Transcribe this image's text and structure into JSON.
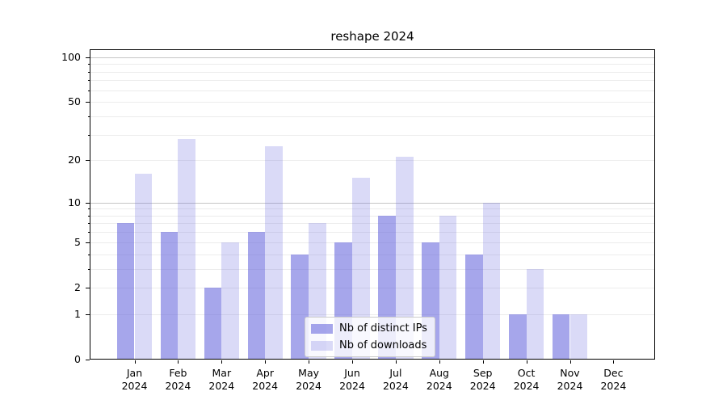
{
  "figure": {
    "title": "reshape 2024"
  },
  "chart_data": {
    "type": "bar",
    "title": "reshape 2024",
    "categories": [
      "Jan 2024",
      "Feb 2024",
      "Mar 2024",
      "Apr 2024",
      "May 2024",
      "Jun 2024",
      "Jul 2024",
      "Aug 2024",
      "Sep 2024",
      "Oct 2024",
      "Nov 2024",
      "Dec 2024"
    ],
    "xtick_lines": [
      [
        "Jan",
        "2024"
      ],
      [
        "Feb",
        "2024"
      ],
      [
        "Mar",
        "2024"
      ],
      [
        "Apr",
        "2024"
      ],
      [
        "May",
        "2024"
      ],
      [
        "Jun",
        "2024"
      ],
      [
        "Jul",
        "2024"
      ],
      [
        "Aug",
        "2024"
      ],
      [
        "Sep",
        "2024"
      ],
      [
        "Oct",
        "2024"
      ],
      [
        "Nov",
        "2024"
      ],
      [
        "Dec",
        "2024"
      ]
    ],
    "series": [
      {
        "name": "Nb of distinct IPs",
        "color": "#6666dd",
        "alpha": 0.58,
        "values": [
          7,
          6,
          2,
          6,
          4,
          5,
          8,
          5,
          4,
          1,
          1,
          0
        ]
      },
      {
        "name": "Nb of downloads",
        "color": "#6666dd",
        "alpha": 0.24,
        "values": [
          16,
          28,
          5,
          25,
          7,
          15,
          21,
          8,
          10,
          3,
          1,
          0
        ]
      }
    ],
    "xlabel": "",
    "ylabel": "",
    "yscale": "log10(1+y)",
    "ylim": [
      0,
      113
    ],
    "ytick_labels": [
      0,
      1,
      2,
      5,
      10,
      20,
      50,
      100
    ],
    "minor_gridlines": [
      1,
      2,
      3,
      4,
      5,
      6,
      7,
      8,
      9,
      20,
      30,
      40,
      50,
      60,
      70,
      80,
      90
    ],
    "major_gridlines": [
      10,
      100
    ],
    "grid": true,
    "legend_position": "lower center",
    "colors": {
      "grid_minor": "#ececec",
      "grid_major": "#c6c6c6",
      "axis": "#000000",
      "text": "#000000"
    }
  }
}
